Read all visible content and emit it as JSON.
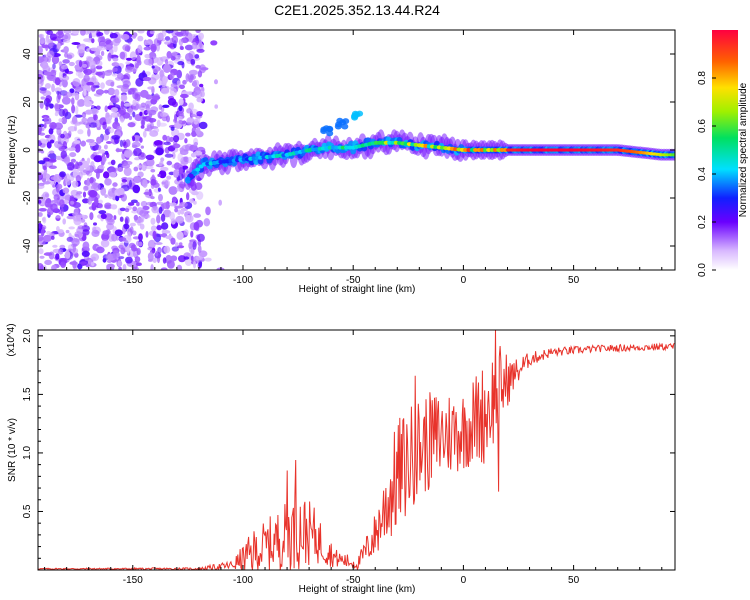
{
  "title": "C2E1.2025.352.13.44.R24",
  "chart_data": [
    {
      "type": "heatmap",
      "xlabel": "Height of straight line (km)",
      "ylabel": "Frequency (Hz)",
      "xlim": [
        -193,
        96
      ],
      "ylim": [
        -50,
        50
      ],
      "xticks": [
        -150,
        -100,
        -50,
        0,
        50
      ],
      "yticks": [
        -40,
        -20,
        0,
        20,
        40
      ],
      "colorbar": {
        "label": "Normalized spectral amplitude",
        "range": [
          0,
          1
        ],
        "ticks": [
          "0.0",
          "0.2",
          "0.4",
          "0.6",
          "0.8"
        ],
        "tick_values": [
          0.0,
          0.2,
          0.4,
          0.6,
          0.8
        ]
      },
      "noise_region_x": [
        -193,
        -118
      ],
      "ridge": [
        {
          "x": -125,
          "y": -12,
          "a": 0.35
        },
        {
          "x": -118,
          "y": -6,
          "a": 0.45
        },
        {
          "x": -110,
          "y": -5,
          "a": 0.4
        },
        {
          "x": -100,
          "y": -4,
          "a": 0.4
        },
        {
          "x": -90,
          "y": -3,
          "a": 0.45
        },
        {
          "x": -80,
          "y": -2,
          "a": 0.45
        },
        {
          "x": -70,
          "y": 0,
          "a": 0.5
        },
        {
          "x": -60,
          "y": 1,
          "a": 0.5
        },
        {
          "x": -50,
          "y": 1,
          "a": 0.55
        },
        {
          "x": -40,
          "y": 3,
          "a": 0.65
        },
        {
          "x": -30,
          "y": 3,
          "a": 0.7
        },
        {
          "x": -20,
          "y": 2,
          "a": 0.75
        },
        {
          "x": -10,
          "y": 1,
          "a": 0.8
        },
        {
          "x": 0,
          "y": 0,
          "a": 0.85
        },
        {
          "x": 10,
          "y": 0,
          "a": 0.9
        },
        {
          "x": 20,
          "y": 0,
          "a": 0.95
        },
        {
          "x": 30,
          "y": 0,
          "a": 1.0
        },
        {
          "x": 40,
          "y": 0,
          "a": 1.0
        },
        {
          "x": 50,
          "y": 0,
          "a": 1.0
        },
        {
          "x": 60,
          "y": 0,
          "a": 0.98
        },
        {
          "x": 70,
          "y": 0,
          "a": 0.95
        },
        {
          "x": 80,
          "y": -1,
          "a": 0.85
        },
        {
          "x": 90,
          "y": -2,
          "a": 0.7
        },
        {
          "x": 96,
          "y": -2,
          "a": 0.6
        }
      ],
      "branch": [
        {
          "x": -62,
          "y": 8,
          "a": 0.35
        },
        {
          "x": -55,
          "y": 11,
          "a": 0.35
        },
        {
          "x": -48,
          "y": 14,
          "a": 0.4
        }
      ]
    },
    {
      "type": "line",
      "xlabel": "Height of straight line (km)",
      "ylabel": "SNR (10 * v/v)",
      "exponent_label": "(x10^4)",
      "xlim": [
        -193,
        96
      ],
      "ylim": [
        0,
        2.05
      ],
      "xticks": [
        -150,
        -100,
        -50,
        0,
        50
      ],
      "yticks": [
        0.5,
        1.0,
        1.5,
        2.0
      ],
      "ytick_labels": [
        "0.5",
        "1.0",
        "1.5",
        "2.0"
      ],
      "color": "#e8332b",
      "envelope": [
        {
          "x": -193,
          "base": 0.01,
          "amp": 0.005
        },
        {
          "x": -120,
          "base": 0.01,
          "amp": 0.01
        },
        {
          "x": -105,
          "base": 0.04,
          "amp": 0.04
        },
        {
          "x": -95,
          "base": 0.15,
          "amp": 0.2
        },
        {
          "x": -85,
          "base": 0.25,
          "amp": 0.25
        },
        {
          "x": -75,
          "base": 0.35,
          "amp": 0.35
        },
        {
          "x": -68,
          "base": 0.3,
          "amp": 0.25
        },
        {
          "x": -58,
          "base": 0.1,
          "amp": 0.08
        },
        {
          "x": -48,
          "base": 0.05,
          "amp": 0.05
        },
        {
          "x": -40,
          "base": 0.3,
          "amp": 0.2
        },
        {
          "x": -30,
          "base": 0.8,
          "amp": 0.5
        },
        {
          "x": -20,
          "base": 1.05,
          "amp": 0.45
        },
        {
          "x": -10,
          "base": 1.15,
          "amp": 0.4
        },
        {
          "x": 0,
          "base": 1.2,
          "amp": 0.35
        },
        {
          "x": 10,
          "base": 1.35,
          "amp": 0.45
        },
        {
          "x": 16,
          "base": 1.55,
          "amp": 0.4
        },
        {
          "x": 22,
          "base": 1.65,
          "amp": 0.15
        },
        {
          "x": 30,
          "base": 1.8,
          "amp": 0.06
        },
        {
          "x": 40,
          "base": 1.86,
          "amp": 0.04
        },
        {
          "x": 60,
          "base": 1.89,
          "amp": 0.03
        },
        {
          "x": 96,
          "base": 1.91,
          "amp": 0.03
        }
      ],
      "spikes": [
        {
          "x": -76,
          "y": 0.94
        },
        {
          "x": -80,
          "y": 0.85
        },
        {
          "x": 14.5,
          "y": 2.06
        },
        {
          "x": 16,
          "y": 0.67
        },
        {
          "x": -22,
          "y": 1.66
        },
        {
          "x": -35,
          "y": 0.7
        }
      ]
    }
  ]
}
